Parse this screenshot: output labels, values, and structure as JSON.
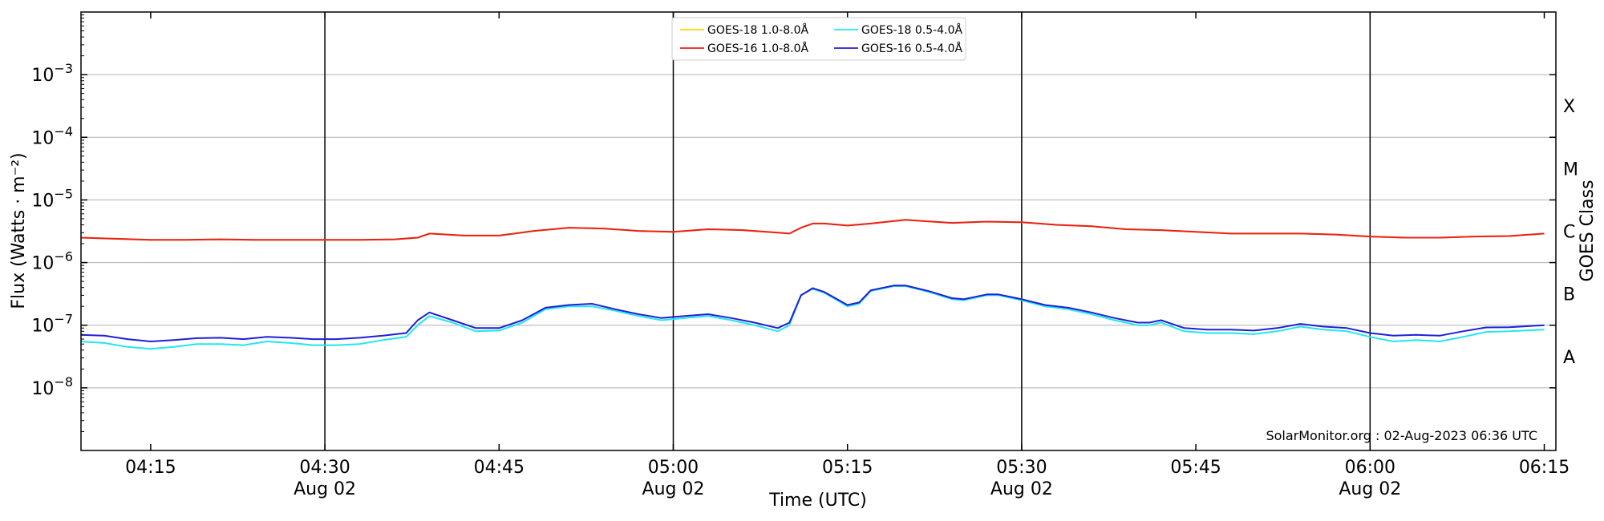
{
  "chart_data": {
    "type": "line",
    "title": "",
    "xlabel": "Time (UTC)",
    "ylabel": "Flux (Watts · m⁻²)",
    "ylabel_right": "GOES Class",
    "yscale": "log",
    "ylim": [
      1e-09,
      0.01
    ],
    "xlim": [
      "04:09",
      "06:16"
    ],
    "grid": "horizontal",
    "legend_position": "top-center",
    "credit": "SolarMonitor.org : 02-Aug-2023 06:36 UTC",
    "x_ticks": [
      {
        "time": "04:15",
        "label": "04:15",
        "sublabel": ""
      },
      {
        "time": "04:30",
        "label": "04:30",
        "sublabel": "Aug 02"
      },
      {
        "time": "04:45",
        "label": "04:45",
        "sublabel": ""
      },
      {
        "time": "05:00",
        "label": "05:00",
        "sublabel": "Aug 02"
      },
      {
        "time": "05:15",
        "label": "05:15",
        "sublabel": ""
      },
      {
        "time": "05:30",
        "label": "05:30",
        "sublabel": "Aug 02"
      },
      {
        "time": "05:45",
        "label": "05:45",
        "sublabel": ""
      },
      {
        "time": "06:00",
        "label": "06:00",
        "sublabel": "Aug 02"
      },
      {
        "time": "06:15",
        "label": "06:15",
        "sublabel": ""
      }
    ],
    "y_ticks": [
      {
        "value": 1e-08,
        "base": "10",
        "exp": "−8"
      },
      {
        "value": 1e-07,
        "base": "10",
        "exp": "−7"
      },
      {
        "value": 1e-06,
        "base": "10",
        "exp": "−6"
      },
      {
        "value": 1e-05,
        "base": "10",
        "exp": "−5"
      },
      {
        "value": 0.0001,
        "base": "10",
        "exp": "−4"
      },
      {
        "value": 0.001,
        "base": "10",
        "exp": "−3"
      }
    ],
    "vertical_lines": [
      "04:30",
      "05:00",
      "05:30",
      "06:00"
    ],
    "goes_classes": [
      {
        "label": "A",
        "value": 3.16e-08
      },
      {
        "label": "B",
        "value": 3.16e-07
      },
      {
        "label": "C",
        "value": 3.16e-06
      },
      {
        "label": "M",
        "value": 3.16e-05
      },
      {
        "label": "X",
        "value": 0.000316
      }
    ],
    "series": [
      {
        "name": "GOES-18 1.0-8.0Å",
        "color": "#ffd700",
        "legend_slot": 0,
        "x": [
          "04:09",
          "04:12",
          "04:15",
          "04:18",
          "04:21",
          "04:24",
          "04:27",
          "04:30",
          "04:33",
          "04:36",
          "04:38",
          "04:39",
          "04:42",
          "04:45",
          "04:48",
          "04:51",
          "04:54",
          "04:57",
          "05:00",
          "05:03",
          "05:06",
          "05:09",
          "05:10",
          "05:11",
          "05:12",
          "05:13",
          "05:15",
          "05:17",
          "05:20",
          "05:24",
          "05:27",
          "05:30",
          "05:33",
          "05:36",
          "05:39",
          "05:42",
          "05:45",
          "05:48",
          "05:51",
          "05:54",
          "05:57",
          "06:00",
          "06:03",
          "06:06",
          "06:09",
          "06:12",
          "06:15"
        ],
        "values": [
          2.5e-06,
          2.4e-06,
          2.3e-06,
          2.3e-06,
          2.35e-06,
          2.3e-06,
          2.3e-06,
          2.3e-06,
          2.3e-06,
          2.35e-06,
          2.5e-06,
          2.9e-06,
          2.7e-06,
          2.7e-06,
          3.2e-06,
          3.6e-06,
          3.5e-06,
          3.2e-06,
          3.1e-06,
          3.4e-06,
          3.3e-06,
          3e-06,
          2.9e-06,
          3.6e-06,
          4.2e-06,
          4.2e-06,
          3.9e-06,
          4.2e-06,
          4.8e-06,
          4.3e-06,
          4.5e-06,
          4.4e-06,
          4e-06,
          3.8e-06,
          3.4e-06,
          3.3e-06,
          3.1e-06,
          2.9e-06,
          2.9e-06,
          2.9e-06,
          2.8e-06,
          2.6e-06,
          2.5e-06,
          2.5e-06,
          2.6e-06,
          2.65e-06,
          2.9e-06
        ]
      },
      {
        "name": "GOES-16 1.0-8.0Å",
        "color": "#e8201c",
        "legend_slot": 1,
        "x": [
          "04:09",
          "04:12",
          "04:15",
          "04:18",
          "04:21",
          "04:24",
          "04:27",
          "04:30",
          "04:33",
          "04:36",
          "04:38",
          "04:39",
          "04:42",
          "04:45",
          "04:48",
          "04:51",
          "04:54",
          "04:57",
          "05:00",
          "05:03",
          "05:06",
          "05:09",
          "05:10",
          "05:11",
          "05:12",
          "05:13",
          "05:15",
          "05:17",
          "05:20",
          "05:24",
          "05:27",
          "05:30",
          "05:33",
          "05:36",
          "05:39",
          "05:42",
          "05:45",
          "05:48",
          "05:51",
          "05:54",
          "05:57",
          "06:00",
          "06:03",
          "06:06",
          "06:09",
          "06:12",
          "06:15"
        ],
        "values": [
          2.5e-06,
          2.4e-06,
          2.3e-06,
          2.3e-06,
          2.35e-06,
          2.3e-06,
          2.3e-06,
          2.3e-06,
          2.3e-06,
          2.35e-06,
          2.5e-06,
          2.9e-06,
          2.7e-06,
          2.7e-06,
          3.2e-06,
          3.6e-06,
          3.5e-06,
          3.2e-06,
          3.1e-06,
          3.4e-06,
          3.3e-06,
          3e-06,
          2.9e-06,
          3.6e-06,
          4.2e-06,
          4.2e-06,
          3.9e-06,
          4.2e-06,
          4.8e-06,
          4.3e-06,
          4.5e-06,
          4.4e-06,
          4e-06,
          3.8e-06,
          3.4e-06,
          3.3e-06,
          3.1e-06,
          2.9e-06,
          2.9e-06,
          2.9e-06,
          2.8e-06,
          2.6e-06,
          2.5e-06,
          2.5e-06,
          2.6e-06,
          2.65e-06,
          2.9e-06
        ]
      },
      {
        "name": "GOES-18 0.5-4.0Å",
        "color": "#22e6f0",
        "legend_slot": 2,
        "x": [
          "04:09",
          "04:11",
          "04:13",
          "04:15",
          "04:17",
          "04:19",
          "04:21",
          "04:23",
          "04:25",
          "04:27",
          "04:29",
          "04:31",
          "04:33",
          "04:35",
          "04:37",
          "04:38",
          "04:39",
          "04:41",
          "04:43",
          "04:45",
          "04:47",
          "04:49",
          "04:51",
          "04:53",
          "04:55",
          "04:57",
          "04:59",
          "05:01",
          "05:03",
          "05:05",
          "05:07",
          "05:09",
          "05:10",
          "05:11",
          "05:12",
          "05:13",
          "05:15",
          "05:16",
          "05:17",
          "05:19",
          "05:20",
          "05:22",
          "05:24",
          "05:25",
          "05:27",
          "05:28",
          "05:30",
          "05:32",
          "05:34",
          "05:36",
          "05:38",
          "05:40",
          "05:41",
          "05:42",
          "05:44",
          "05:46",
          "05:48",
          "05:50",
          "05:52",
          "05:54",
          "05:56",
          "05:58",
          "06:00",
          "06:02",
          "06:04",
          "06:06",
          "06:08",
          "06:10",
          "06:12",
          "06:15"
        ],
        "values": [
          5.5e-08,
          5.2e-08,
          4.5e-08,
          4.2e-08,
          4.5e-08,
          5e-08,
          5e-08,
          4.8e-08,
          5.5e-08,
          5.2e-08,
          4.8e-08,
          4.8e-08,
          5e-08,
          5.8e-08,
          6.5e-08,
          1e-07,
          1.4e-07,
          1.1e-07,
          8e-08,
          8.2e-08,
          1.1e-07,
          1.8e-07,
          2e-07,
          2e-07,
          1.7e-07,
          1.4e-07,
          1.2e-07,
          1.3e-07,
          1.4e-07,
          1.2e-07,
          1e-07,
          8e-08,
          1e-07,
          3e-07,
          3.8e-07,
          3.3e-07,
          2e-07,
          2.2e-07,
          3.5e-07,
          4.2e-07,
          4.2e-07,
          3.4e-07,
          2.6e-07,
          2.5e-07,
          3e-07,
          3e-07,
          2.5e-07,
          2e-07,
          1.8e-07,
          1.5e-07,
          1.2e-07,
          1e-07,
          1e-07,
          1.1e-07,
          8e-08,
          7.5e-08,
          7.5e-08,
          7.2e-08,
          8e-08,
          9.5e-08,
          8.5e-08,
          8e-08,
          6.5e-08,
          5.5e-08,
          5.8e-08,
          5.5e-08,
          6.5e-08,
          7.8e-08,
          8e-08,
          8.5e-08
        ]
      },
      {
        "name": "GOES-16 0.5-4.0Å",
        "color": "#1f1fd6",
        "legend_slot": 3,
        "x": [
          "04:09",
          "04:11",
          "04:13",
          "04:15",
          "04:17",
          "04:19",
          "04:21",
          "04:23",
          "04:25",
          "04:27",
          "04:29",
          "04:31",
          "04:33",
          "04:35",
          "04:37",
          "04:38",
          "04:39",
          "04:41",
          "04:43",
          "04:45",
          "04:47",
          "04:49",
          "04:51",
          "04:53",
          "04:55",
          "04:57",
          "04:59",
          "05:01",
          "05:03",
          "05:05",
          "05:07",
          "05:09",
          "05:10",
          "05:11",
          "05:12",
          "05:13",
          "05:15",
          "05:16",
          "05:17",
          "05:19",
          "05:20",
          "05:22",
          "05:24",
          "05:25",
          "05:27",
          "05:28",
          "05:30",
          "05:32",
          "05:34",
          "05:36",
          "05:38",
          "05:40",
          "05:41",
          "05:42",
          "05:44",
          "05:46",
          "05:48",
          "05:50",
          "05:52",
          "05:54",
          "05:56",
          "05:58",
          "06:00",
          "06:02",
          "06:04",
          "06:06",
          "06:08",
          "06:10",
          "06:12",
          "06:15"
        ],
        "values": [
          7e-08,
          6.8e-08,
          6e-08,
          5.5e-08,
          5.8e-08,
          6.2e-08,
          6.3e-08,
          6e-08,
          6.5e-08,
          6.3e-08,
          6e-08,
          6e-08,
          6.3e-08,
          6.8e-08,
          7.5e-08,
          1.2e-07,
          1.6e-07,
          1.2e-07,
          9e-08,
          9e-08,
          1.2e-07,
          1.9e-07,
          2.1e-07,
          2.2e-07,
          1.8e-07,
          1.5e-07,
          1.3e-07,
          1.4e-07,
          1.5e-07,
          1.3e-07,
          1.1e-07,
          9e-08,
          1.1e-07,
          3e-07,
          3.9e-07,
          3.4e-07,
          2.1e-07,
          2.3e-07,
          3.6e-07,
          4.3e-07,
          4.3e-07,
          3.5e-07,
          2.7e-07,
          2.6e-07,
          3.1e-07,
          3.1e-07,
          2.6e-07,
          2.1e-07,
          1.9e-07,
          1.6e-07,
          1.3e-07,
          1.1e-07,
          1.1e-07,
          1.2e-07,
          9e-08,
          8.5e-08,
          8.5e-08,
          8.2e-08,
          9e-08,
          1.05e-07,
          9.5e-08,
          9e-08,
          7.5e-08,
          6.8e-08,
          7e-08,
          6.8e-08,
          8e-08,
          9.2e-08,
          9.3e-08,
          1e-07
        ]
      }
    ]
  }
}
